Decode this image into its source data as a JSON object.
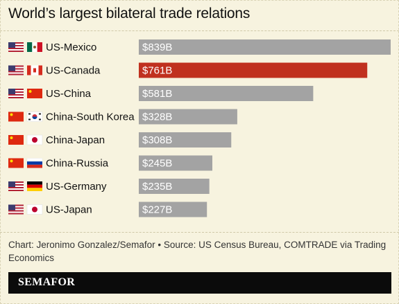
{
  "title": "World’s largest bilateral trade relations",
  "chart_data": {
    "type": "bar",
    "orientation": "horizontal",
    "categories": [
      "US-Mexico",
      "US-Canada",
      "US-China",
      "China-South Korea",
      "China-Japan",
      "China-Russia",
      "US-Germany",
      "US-Japan"
    ],
    "values": [
      839,
      761,
      581,
      328,
      308,
      245,
      235,
      227
    ],
    "value_labels": [
      "$839B",
      "$761B",
      "$581B",
      "$328B",
      "$308B",
      "$245B",
      "$235B",
      "$227B"
    ],
    "flags": [
      [
        "us-flag",
        "mexico-flag"
      ],
      [
        "us-flag",
        "canada-flag"
      ],
      [
        "us-flag",
        "china-flag"
      ],
      [
        "china-flag",
        "south-korea-flag"
      ],
      [
        "china-flag",
        "japan-flag"
      ],
      [
        "china-flag",
        "russia-flag"
      ],
      [
        "us-flag",
        "germany-flag"
      ],
      [
        "us-flag",
        "japan-flag"
      ]
    ],
    "highlight_index": 1,
    "colors": {
      "bar": "#a3a3a3",
      "highlight": "#c0311f"
    },
    "xlim": [
      0,
      839
    ],
    "xlabel": "",
    "ylabel": "",
    "grid": false
  },
  "source": "Chart: Jeronimo Gonzalez/Semafor • Source: US Census Bureau, COMTRADE via Trading Economics",
  "logo": "SEMAFOR"
}
